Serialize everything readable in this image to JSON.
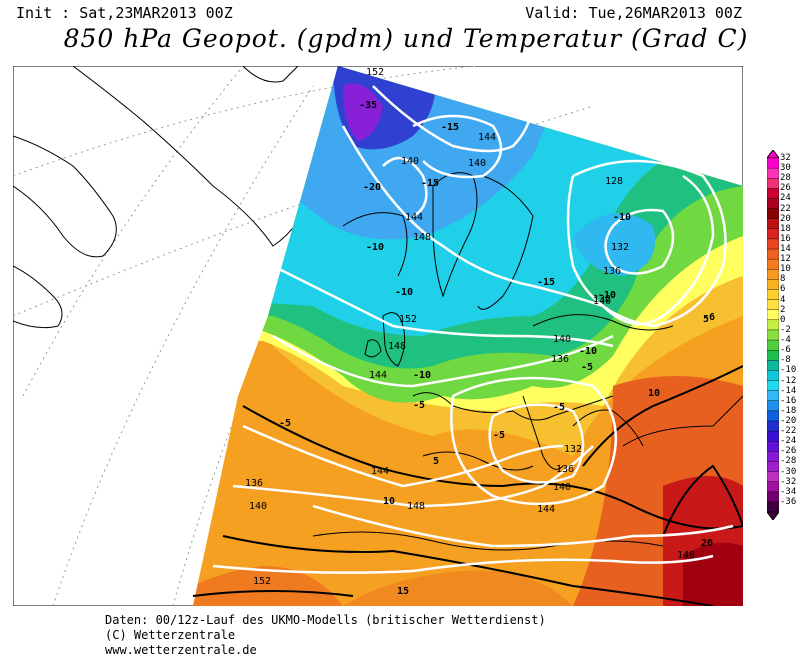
{
  "header": {
    "init": "Init : Sat,23MAR2013 00Z",
    "valid": "Valid: Tue,26MAR2013 00Z",
    "title": "850 hPa Geopot. (gpdm) und Temperatur (Grad C)"
  },
  "colorbar": {
    "labels": [
      "32",
      "30",
      "28",
      "26",
      "24",
      "22",
      "20",
      "18",
      "16",
      "14",
      "12",
      "10",
      "8",
      "6",
      "4",
      "2",
      "0",
      "-2",
      "-4",
      "-6",
      "-8",
      "-10",
      "-12",
      "-14",
      "-16",
      "-18",
      "-20",
      "-22",
      "-24",
      "-26",
      "-28",
      "-30",
      "-32",
      "-34",
      "-36"
    ],
    "colors": [
      "#ff00cc",
      "#ff33bb",
      "#ee3377",
      "#cc0033",
      "#aa0022",
      "#880000",
      "#bb1111",
      "#dd2222",
      "#e84420",
      "#f06020",
      "#f57a20",
      "#f89a20",
      "#fbb020",
      "#fdd030",
      "#ffe040",
      "#ffff60",
      "#c8f040",
      "#88e040",
      "#50d040",
      "#20c050",
      "#10b8a0",
      "#10c8d8",
      "#20d8f0",
      "#30b8f8",
      "#2090f0",
      "#1060e0",
      "#2030d0",
      "#3810d0",
      "#6010d8",
      "#8818d8",
      "#a020d0",
      "#c030c0",
      "#a010a0",
      "#700070",
      "#400040"
    ]
  },
  "map_labels": {
    "geopotential": [
      "152",
      "144",
      "140",
      "140",
      "144",
      "148",
      "152",
      "148",
      "144",
      "140",
      "136",
      "132",
      "128",
      "132",
      "136",
      "140",
      "136",
      "132",
      "140",
      "144",
      "148",
      "148",
      "144",
      "140",
      "136",
      "152"
    ],
    "temperature": [
      "-35",
      "-15",
      "-20",
      "-15",
      "-10",
      "-10",
      "-15",
      "-10",
      "-10",
      "-5",
      "-5",
      "-5",
      "-10",
      "-5",
      "-6",
      "-10",
      "-5",
      "5",
      "5",
      "10",
      "10",
      "15",
      "20"
    ]
  },
  "footer": {
    "line1": "Daten: 00/12z-Lauf des UKMO-Modells (britischer Wetterdienst)",
    "line2": "(C) Wetterzentrale",
    "line3": "www.wetterzentrale.de"
  }
}
